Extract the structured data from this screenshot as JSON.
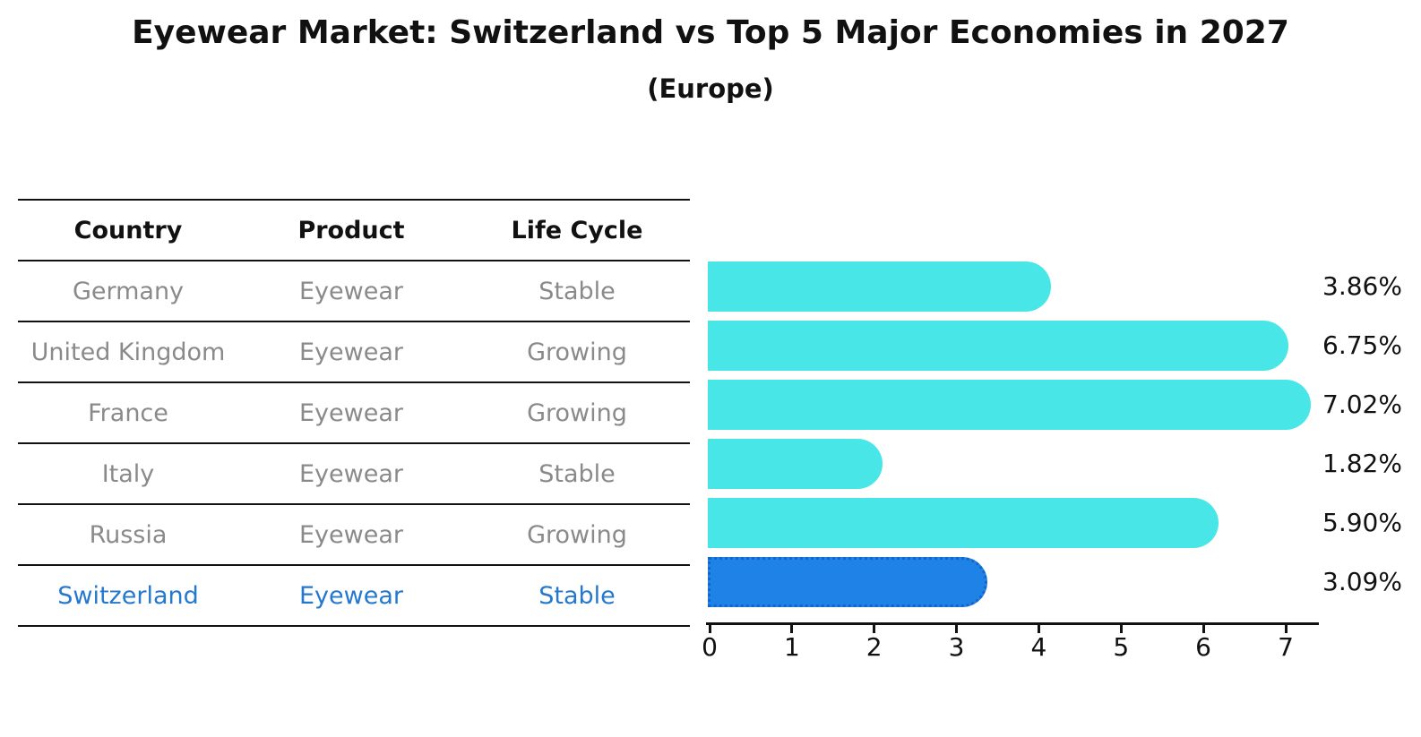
{
  "title": "Eyewear Market: Switzerland vs Top 5 Major Economies in 2027",
  "subtitle": "(Europe)",
  "table": {
    "headers": [
      "Country",
      "Product",
      "Life Cycle"
    ],
    "rows": [
      {
        "country": "Germany",
        "product": "Eyewear",
        "life_cycle": "Stable"
      },
      {
        "country": "United Kingdom",
        "product": "Eyewear",
        "life_cycle": "Growing"
      },
      {
        "country": "France",
        "product": "Eyewear",
        "life_cycle": "Growing"
      },
      {
        "country": "Italy",
        "product": "Eyewear",
        "life_cycle": "Stable"
      },
      {
        "country": "Russia",
        "product": "Eyewear",
        "life_cycle": "Growing"
      },
      {
        "country": "Switzerland",
        "product": "Eyewear",
        "life_cycle": "Stable"
      }
    ],
    "highlight_row": "Switzerland"
  },
  "chart_data": {
    "type": "bar",
    "orientation": "horizontal",
    "title": "Eyewear Market: Switzerland vs Top 5 Major Economies in 2027 (Europe)",
    "categories": [
      "Germany",
      "United Kingdom",
      "France",
      "Italy",
      "Russia",
      "Switzerland"
    ],
    "values": [
      3.86,
      6.75,
      7.02,
      1.82,
      5.9,
      3.09
    ],
    "value_labels": [
      "3.86%",
      "6.75%",
      "7.02%",
      "1.82%",
      "5.90%",
      "3.09%"
    ],
    "x_ticks": [
      "0",
      "1",
      "2",
      "3",
      "4",
      "5",
      "6",
      "7"
    ],
    "xlim": [
      0,
      7.4
    ],
    "xlabel": "",
    "ylabel": "",
    "grid": false,
    "legend": "none",
    "bar_color": "#48e6e6",
    "highlight_bar_color": "#1e82e6",
    "highlight_index": 5
  },
  "colors": {
    "bar": "#48e6e6",
    "highlight_bar": "#1e82e6",
    "highlight_text": "#2478cd",
    "table_text": "#8a8a8a",
    "heading_text": "#111111"
  }
}
